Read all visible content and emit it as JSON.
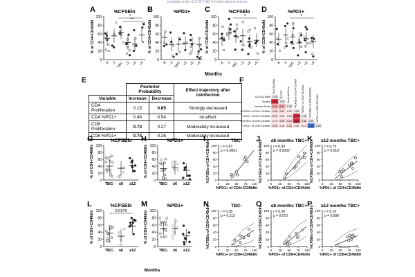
{
  "header_text": "available under aCC-BY-ND 4.0 International license.",
  "colors": {
    "point": "#222222",
    "heat_strong": "#cc2a3a",
    "heat_med": "#f0a8a8",
    "heat_light": "#f7d8d8",
    "heat_blue": "#4a78c8"
  },
  "panels_top": [
    {
      "letter": "A",
      "title": "%CFSElo",
      "ylabel": "% of CD4+CD49dhi",
      "yticks": [
        "0",
        "20",
        "40",
        "60",
        "80",
        "100"
      ],
      "xticks": [
        "-8",
        "-3",
        "TBC",
        "+3",
        "+6",
        "+9"
      ],
      "sig": [
        "*",
        "**"
      ]
    },
    {
      "letter": "B",
      "title": "%PD1+",
      "ylabel": "% of CD4+CD49dhi",
      "yticks": [
        "0",
        "20",
        "40",
        "60",
        "80",
        "100"
      ],
      "xticks": [
        "-8",
        "-3",
        "TBC",
        "+3",
        "+6",
        "+9"
      ],
      "sig": []
    },
    {
      "letter": "C",
      "title": "%CFSElo",
      "ylabel": "% of CD8+CD49dhi",
      "yticks": [
        "0",
        "20",
        "40",
        "60",
        "80",
        "100"
      ],
      "xticks": [
        "-8",
        "-3",
        "TBC",
        "+3",
        "+6",
        "+9"
      ],
      "sig": [
        "*"
      ]
    },
    {
      "letter": "D",
      "title": "%PD1+",
      "ylabel": "% of CD8+CD49dhi",
      "yticks": [
        "0",
        "20",
        "40",
        "60",
        "80",
        "100"
      ],
      "xticks": [
        "-8",
        "-3",
        "TBC",
        "+3",
        "+6",
        "+9"
      ],
      "sig": [
        "*"
      ]
    }
  ],
  "months_label": "Months",
  "table_E": {
    "letter": "E",
    "group_header": "Posterior Probability",
    "effect_header": "Effect trajectory after coinfection",
    "col_variable": "Variable",
    "col_increase": "Increase",
    "col_decrease": "Decrease",
    "rows": [
      {
        "variable": "CD4 Proliferation",
        "increase": "0.15",
        "decrease": "0.85",
        "effect": "Strongly decreased",
        "bold": "decrease"
      },
      {
        "variable": "CD4 %PD1+",
        "increase": "0.46",
        "decrease": "0.54",
        "effect": "no effect",
        "bold": ""
      },
      {
        "variable": "CD8 Proliferation",
        "increase": "0.73",
        "decrease": "0.27",
        "effect": "Moderately increased",
        "bold": "increase"
      },
      {
        "variable": "CD8 %PD1+",
        "increase": "0.74",
        "decrease": "0.26",
        "effect": "Moderately increased",
        "bold": "increase"
      }
    ]
  },
  "heat_F": {
    "letter": "F",
    "rows": [
      "SLA DQ Ratio",
      "Burden",
      "Lesional Score",
      "%CFSElo of CD4+CD49dhi",
      "%PD1+ of CD4+CD49dhi",
      "%CFSElo of CD8+CD49dhi",
      "%PD1+ of CD8+CD49dhi"
    ],
    "cols": [
      "SLA DQ Ratio",
      "Burden",
      "Lesional Score",
      "%CFSElo of CD4+CD49dhi",
      "%PD1+ of CD4+CD49dhi",
      "%CFSElo of CD8+CD49dhi",
      "%PD1+ of CD8+CD49dhi"
    ],
    "values": [
      [
        "1.00"
      ],
      [
        "0.70",
        "1.00"
      ],
      [
        "0.44",
        "0.61",
        "1.00"
      ],
      [
        "0.35",
        "0.24",
        "0.16",
        "1.00"
      ],
      [
        "0.20",
        "0.00",
        "0.00",
        "0.79",
        "1.00"
      ],
      [
        "0.18",
        "0.20",
        "0.23",
        "0.82",
        "0.36",
        "1.00"
      ],
      [
        "0.20",
        "0.18",
        "0.23",
        "0.02",
        "0.13",
        "0.26",
        "1.00"
      ]
    ]
  },
  "panels_mid": [
    {
      "letter": "G",
      "title": "%CFSElo",
      "ylabel": "% of CD4+CD49dhi",
      "yticks": [
        "0",
        "20",
        "40",
        "60",
        "80",
        "100"
      ],
      "xticks": [
        "TBC-",
        "≤6",
        "≥12"
      ],
      "note": ""
    },
    {
      "letter": "H",
      "title": "%PD1+",
      "ylabel": "% of CD4+CD49dhi",
      "yticks": [
        "0",
        "20",
        "40",
        "60",
        "80",
        "100"
      ],
      "xticks": [
        "TBC-",
        "≤6",
        "≥12"
      ],
      "note": ""
    }
  ],
  "scatter_mid": [
    {
      "letter": "I",
      "title": "TBC-",
      "r": "r = 0.87",
      "p": "p < 0.0001",
      "ylabel": "%CFSElo of CD4+CD49dhi",
      "xlabel": "%PD1+ of CD4+CD49dhi",
      "xticks": [
        "0",
        "25",
        "50",
        "75",
        "100"
      ],
      "yticks": [
        "0",
        "20",
        "40",
        "60",
        "80",
        "100"
      ]
    },
    {
      "letter": "J",
      "title": "≤6 months TBC+",
      "r": "r = 0.90",
      "p": "p = 0.0002",
      "ylabel": "%CFSElo of CD4+CD49dhi",
      "xlabel": "%PD1+ of CD4+CD49dhi",
      "xticks": [
        "0",
        "25",
        "50",
        "75",
        "100"
      ],
      "yticks": [
        "0",
        "20",
        "40",
        "60",
        "80",
        "100"
      ]
    },
    {
      "letter": "K",
      "title": "≥12 months TBC+",
      "r": "r = 0.79",
      "p": "p = 0.019",
      "ylabel": "%CFSElo of CD4+CD49dhi",
      "xlabel": "%PD1+ of CD4+CD49dhi",
      "xticks": [
        "0",
        "25",
        "50",
        "75",
        "100"
      ],
      "yticks": [
        "0",
        "20",
        "40",
        "60",
        "80",
        "100"
      ]
    }
  ],
  "panels_bot": [
    {
      "letter": "L",
      "title": "%CFSElo",
      "ylabel": "% of CD8+CD49dhi",
      "yticks": [
        "0",
        "20",
        "40",
        "60",
        "80",
        "100"
      ],
      "xticks": [
        "TBC-",
        "≤6",
        "≥12"
      ],
      "note": "0.0176"
    },
    {
      "letter": "M",
      "title": "%PD1+",
      "ylabel": "% of CD8+CD49dhi",
      "yticks": [
        "0",
        "20",
        "40",
        "60",
        "80",
        "100"
      ],
      "xticks": [
        "TBC-",
        "≤6",
        "≥12"
      ],
      "note": ""
    }
  ],
  "scatter_bot": [
    {
      "letter": "N",
      "title": "TBC-",
      "r": "r = 0.38",
      "p": "p = 0.113",
      "ylabel": "%CFSElo of CD8+CD49dhi",
      "xlabel": "%PD1+ of CD8+CD49dhi",
      "xticks": [
        "0",
        "25",
        "50",
        "75",
        "100"
      ],
      "yticks": [
        "0",
        "20",
        "40",
        "60",
        "80",
        "100"
      ]
    },
    {
      "letter": "O",
      "title": "≤6 months TBC+",
      "r": "r = 0.56",
      "p": "p = 0.073",
      "ylabel": "%CFSElo of CD8+CD49dhi",
      "xlabel": "%PD1+ of CD8+CD49dhi",
      "xticks": [
        "0",
        "25",
        "50",
        "75",
        "100"
      ],
      "yticks": [
        "0",
        "20",
        "40",
        "60",
        "80",
        "100"
      ]
    },
    {
      "letter": "P",
      "title": "≥12 months TBC+",
      "r": "r = 0.16",
      "p": "p = 0.699",
      "ylabel": "%CFSElo of CD8+CD49dhi",
      "xlabel": "%PD1+ of CD8+CD49dhi",
      "xticks": [
        "0",
        "25",
        "50",
        "75",
        "100"
      ],
      "yticks": [
        "0",
        "20",
        "40",
        "60",
        "80",
        "100"
      ]
    }
  ],
  "months_label_bot": "Months"
}
